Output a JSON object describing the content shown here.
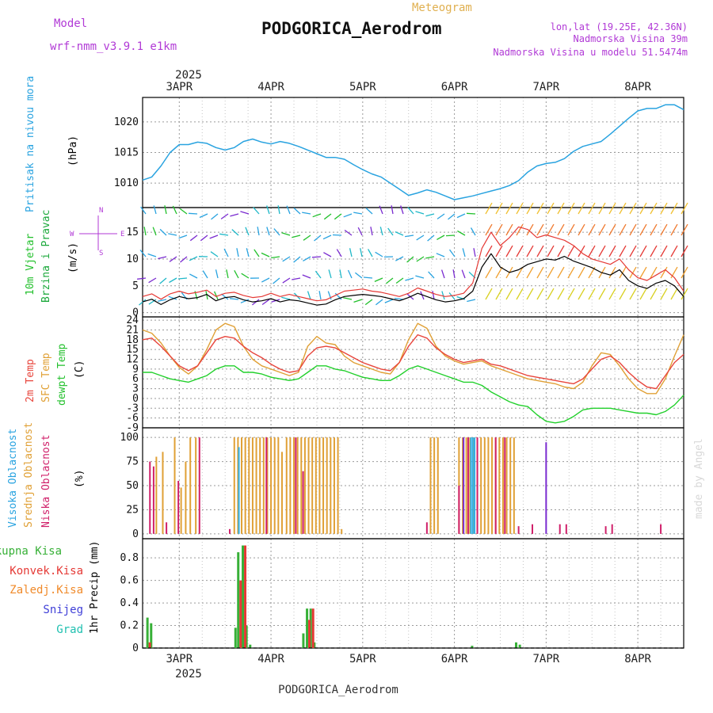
{
  "header": {
    "model_label": "Model",
    "model_name": "wrf-nmm_v3.9.1 e1km",
    "meteogram_label": "Meteogram",
    "station": "PODGORICA_Aerodrom",
    "lonlat": "lon,lat (19.25E, 42.36N)",
    "altitude": "Nadmorska Visina 39m",
    "model_altitude": "Nadmorska Visina u modelu 51.5474m",
    "watermark": "made by Angel",
    "footer_station": "PODGORICA_Aerodrom"
  },
  "colors": {
    "pressure": "#29a3e0",
    "wind_title1": "#22c02c",
    "wind_title2": "#1aa83a",
    "wind_legend": "#b13ad6",
    "temp2m": "#e8453c",
    "sfc": "#e0a035",
    "dewpt": "#22d02c",
    "cloud_high": "#2fb0e8",
    "cloud_mid": "#e0a035",
    "cloud_low": "#d0206a",
    "cloud_extra": "#7a2bd0",
    "rain_total": "#37b037",
    "rain_conv": "#e53935",
    "rain_frozen": "#f08a2a",
    "rain_snow": "#4040d8",
    "rain_graupel": "#20c0b0",
    "wind_speed_line": "#000000",
    "wind_gust_line": "#e53935"
  },
  "axes": {
    "top_year": "2025",
    "bottom_year": "2025",
    "day_labels": [
      "3APR",
      "4APR",
      "5APR",
      "6APR",
      "7APR",
      "8APR"
    ]
  },
  "chart_data": [
    {
      "type": "line",
      "id": "pressure",
      "ylabel_main": "Pritisak na nivou mora",
      "ylabel_unit": "(hPa)",
      "yticks": [
        1010,
        1015,
        1020
      ],
      "ylim": [
        1006,
        1024
      ],
      "grid": true,
      "x_range": [
        2.6,
        8.5
      ],
      "x": [
        2.6,
        2.7,
        2.8,
        2.9,
        3.0,
        3.1,
        3.2,
        3.3,
        3.4,
        3.5,
        3.6,
        3.7,
        3.8,
        3.9,
        4.0,
        4.1,
        4.2,
        4.3,
        4.4,
        4.5,
        4.6,
        4.7,
        4.8,
        4.9,
        5.0,
        5.1,
        5.2,
        5.3,
        5.4,
        5.5,
        5.6,
        5.7,
        5.8,
        5.9,
        6.0,
        6.1,
        6.2,
        6.3,
        6.4,
        6.5,
        6.6,
        6.7,
        6.8,
        6.9,
        7.0,
        7.1,
        7.2,
        7.3,
        7.4,
        7.5,
        7.6,
        7.7,
        7.8,
        7.9,
        8.0,
        8.1,
        8.2,
        8.3,
        8.4,
        8.5
      ],
      "series": [
        {
          "name": "",
          "values": [
            1010.5,
            1011.0,
            1012.8,
            1015.0,
            1016.3,
            1016.3,
            1016.7,
            1016.5,
            1015.8,
            1015.4,
            1015.8,
            1016.8,
            1017.2,
            1016.7,
            1016.4,
            1016.8,
            1016.5,
            1016.0,
            1015.4,
            1014.8,
            1014.2,
            1014.2,
            1013.9,
            1013.0,
            1012.2,
            1011.5,
            1011.0,
            1010.0,
            1009.0,
            1008.0,
            1008.4,
            1008.9,
            1008.5,
            1007.9,
            1007.3,
            1007.6,
            1007.9,
            1008.3,
            1008.7,
            1009.1,
            1009.6,
            1010.4,
            1011.8,
            1012.8,
            1013.2,
            1013.4,
            1014.0,
            1015.2,
            1016.0,
            1016.4,
            1016.8,
            1018.0,
            1019.3,
            1020.6,
            1021.8,
            1022.2,
            1022.2,
            1022.8,
            1022.8,
            1022.0
          ]
        }
      ]
    },
    {
      "type": "line",
      "id": "wind",
      "ylabel_main1": "10m Vjetar",
      "ylabel_main2": "Brzina i Pravac",
      "ylabel_unit": "(m/s)",
      "legend_n": "N",
      "legend_w": "W",
      "legend_e": "E",
      "legend_s": "S",
      "yticks": [
        0,
        5,
        10,
        15
      ],
      "ylim": [
        -0.8,
        19.6
      ],
      "grid": true,
      "x_range": [
        2.6,
        8.5
      ],
      "x": [
        2.6,
        2.7,
        2.8,
        2.9,
        3.0,
        3.1,
        3.2,
        3.3,
        3.4,
        3.5,
        3.6,
        3.7,
        3.8,
        3.9,
        4.0,
        4.1,
        4.2,
        4.3,
        4.4,
        4.5,
        4.6,
        4.7,
        4.8,
        4.9,
        5.0,
        5.1,
        5.2,
        5.3,
        5.4,
        5.5,
        5.6,
        5.7,
        5.8,
        5.9,
        6.0,
        6.1,
        6.2,
        6.3,
        6.4,
        6.5,
        6.6,
        6.7,
        6.8,
        6.9,
        7.0,
        7.1,
        7.2,
        7.3,
        7.4,
        7.5,
        7.6,
        7.7,
        7.8,
        7.9,
        8.0,
        8.1,
        8.2,
        8.3,
        8.4,
        8.5
      ],
      "series": [
        {
          "name": "",
          "values": [
            2.0,
            2.5,
            1.5,
            2.4,
            3.0,
            2.6,
            2.8,
            3.4,
            2.2,
            2.8,
            3.0,
            2.4,
            2.0,
            2.2,
            2.6,
            2.0,
            2.4,
            2.2,
            1.8,
            1.4,
            1.6,
            2.4,
            3.0,
            3.2,
            3.4,
            3.2,
            3.0,
            2.6,
            2.2,
            2.8,
            3.6,
            3.0,
            2.4,
            2.0,
            2.2,
            2.6,
            4.0,
            8.5,
            11.0,
            8.5,
            7.5,
            8.0,
            9.0,
            9.5,
            10.0,
            9.8,
            10.5,
            9.6,
            9.0,
            8.4,
            7.5,
            7.0,
            8.0,
            6.0,
            5.0,
            4.5,
            5.5,
            6.0,
            5.0,
            3.0
          ]
        },
        {
          "name": "",
          "values": [
            3.0,
            3.5,
            2.5,
            3.5,
            4.0,
            3.5,
            3.8,
            4.2,
            3.0,
            3.6,
            3.8,
            3.2,
            2.8,
            3.0,
            3.6,
            3.0,
            3.4,
            3.0,
            2.6,
            2.2,
            2.4,
            3.2,
            4.0,
            4.2,
            4.4,
            4.0,
            3.8,
            3.4,
            3.0,
            3.6,
            4.6,
            4.0,
            3.4,
            3.0,
            3.2,
            3.6,
            5.5,
            12.0,
            15.0,
            12.5,
            14.0,
            16.0,
            15.5,
            14.0,
            14.5,
            14.0,
            13.5,
            12.5,
            11.0,
            10.0,
            9.5,
            9.0,
            10.0,
            8.0,
            6.5,
            6.0,
            7.0,
            8.0,
            6.5,
            4.0
          ]
        }
      ]
    },
    {
      "type": "line",
      "id": "temperature",
      "ylabel_1": "2m Temp",
      "ylabel_2": "SFC Temp",
      "ylabel_3": "dewpt Temp",
      "ylabel_unit": "(C)",
      "yticks": [
        -9,
        -6,
        -3,
        0,
        3,
        6,
        9,
        12,
        15,
        18,
        21,
        24
      ],
      "ylim": [
        -9,
        25
      ],
      "grid": true,
      "x_range": [
        2.6,
        8.5
      ],
      "x": [
        2.6,
        2.7,
        2.8,
        2.9,
        3.0,
        3.1,
        3.2,
        3.3,
        3.4,
        3.5,
        3.6,
        3.7,
        3.8,
        3.9,
        4.0,
        4.1,
        4.2,
        4.3,
        4.4,
        4.5,
        4.6,
        4.7,
        4.8,
        4.9,
        5.0,
        5.1,
        5.2,
        5.3,
        5.4,
        5.5,
        5.6,
        5.7,
        5.8,
        5.9,
        6.0,
        6.1,
        6.2,
        6.3,
        6.4,
        6.5,
        6.6,
        6.7,
        6.8,
        6.9,
        7.0,
        7.1,
        7.2,
        7.3,
        7.4,
        7.5,
        7.6,
        7.7,
        7.8,
        7.9,
        8.0,
        8.1,
        8.2,
        8.3,
        8.4,
        8.5
      ],
      "series": [
        {
          "name": "2m Temp",
          "values": [
            18,
            18.5,
            16,
            13,
            10,
            8.5,
            10,
            14,
            18,
            19,
            18.5,
            16,
            14,
            12.5,
            10.5,
            9,
            8,
            8.5,
            13,
            15.5,
            16,
            15.5,
            14,
            12.5,
            11,
            10,
            9,
            8.5,
            11,
            16,
            19.5,
            18.5,
            15.5,
            13.5,
            12,
            11,
            11.5,
            12,
            10.5,
            10,
            9,
            8,
            7,
            6.5,
            6,
            5.5,
            5,
            4.5,
            6,
            9,
            12,
            13,
            11,
            8,
            5.5,
            3.5,
            3,
            7,
            11,
            13.5
          ]
        },
        {
          "name": "SFC Temp",
          "values": [
            21,
            20,
            17,
            13,
            9.5,
            7.5,
            10,
            15,
            21,
            23,
            22,
            16,
            12,
            10,
            9,
            8,
            7,
            8,
            16,
            19,
            17,
            16.5,
            13,
            11,
            10,
            9,
            8,
            7.5,
            11,
            18,
            23,
            21.5,
            16,
            13,
            11.5,
            10.5,
            11,
            11.5,
            10,
            9,
            8,
            7,
            6,
            5.5,
            5,
            4.5,
            3.5,
            3,
            5,
            10,
            14,
            13.5,
            10,
            6,
            3,
            1.5,
            1.5,
            6,
            13,
            19.5
          ]
        },
        {
          "name": "dewpt Temp",
          "values": [
            8,
            8,
            7,
            6,
            5.5,
            5,
            6,
            7,
            9,
            10,
            10,
            8,
            8,
            7.5,
            6.5,
            6,
            5.5,
            6,
            8,
            10,
            10,
            9,
            8.5,
            7.5,
            6.5,
            6,
            5.5,
            5.5,
            7,
            9,
            10,
            9,
            8,
            7,
            6,
            5,
            5,
            4,
            2,
            0.5,
            -1,
            -2,
            -2.5,
            -5,
            -7,
            -7.5,
            -7,
            -5.5,
            -3.5,
            -3,
            -3,
            -3,
            -3.5,
            -4,
            -4.5,
            -4.5,
            -5,
            -4,
            -2,
            1
          ]
        }
      ]
    },
    {
      "type": "bar",
      "id": "clouds",
      "ylabel_1": "Visoka Oblacnost",
      "ylabel_2": "Srednja Oblacnost",
      "ylabel_3": "Niska Oblacnost",
      "ylabel_unit": "(%)",
      "yticks": [
        0,
        25,
        50,
        75,
        100
      ],
      "ylim": [
        -5,
        110
      ],
      "grid": true,
      "x_range": [
        2.6,
        8.5
      ],
      "series": [
        {
          "name": "Srednja Oblacnost",
          "x": [
            2.75,
            2.82,
            2.95,
            3.02,
            3.07,
            3.12,
            3.18,
            3.6,
            3.64,
            3.68,
            3.72,
            3.76,
            3.8,
            3.84,
            3.88,
            3.92,
            3.96,
            4.0,
            4.04,
            4.08,
            4.12,
            4.17,
            4.21,
            4.25,
            4.29,
            4.33,
            4.37,
            4.41,
            4.45,
            4.49,
            4.53,
            4.57,
            4.61,
            4.65,
            4.69,
            4.73,
            4.77,
            5.74,
            5.78,
            5.82,
            6.05,
            6.09,
            6.13,
            6.17,
            6.21,
            6.25,
            6.29,
            6.33,
            6.37,
            6.41,
            6.45,
            6.49,
            6.53,
            6.57,
            6.61,
            6.65
          ],
          "values": [
            80,
            85,
            100,
            48,
            75,
            100,
            100,
            100,
            100,
            100,
            100,
            100,
            100,
            100,
            100,
            100,
            100,
            100,
            100,
            100,
            85,
            100,
            100,
            100,
            100,
            100,
            100,
            100,
            100,
            100,
            100,
            100,
            100,
            100,
            100,
            100,
            5,
            100,
            100,
            100,
            100,
            100,
            100,
            100,
            100,
            100,
            100,
            100,
            100,
            100,
            100,
            100,
            100,
            100,
            100,
            100
          ]
        },
        {
          "name": "Niska Oblacnost",
          "x": [
            2.68,
            2.72,
            2.86,
            2.99,
            3.22,
            3.55,
            3.95,
            4.27,
            4.35,
            5.7,
            6.05,
            6.15,
            6.25,
            6.45,
            6.55,
            6.7,
            6.85,
            7.15,
            7.22,
            7.65,
            7.72,
            8.25
          ],
          "values": [
            75,
            70,
            12,
            55,
            100,
            5,
            100,
            100,
            65,
            12,
            50,
            100,
            100,
            100,
            100,
            8,
            10,
            10,
            10,
            8,
            10,
            10
          ]
        },
        {
          "name": "Visoka Oblacnost",
          "x": [
            3.65,
            6.18,
            6.2,
            6.22
          ],
          "values": [
            90,
            100,
            100,
            100
          ]
        },
        {
          "name": "",
          "x": [
            6.1,
            7.0
          ],
          "values": [
            100,
            95
          ]
        }
      ]
    },
    {
      "type": "bar",
      "id": "precip",
      "ylabel": "1hr Precip (mm)",
      "yticks": [
        0,
        0.2,
        0.4,
        0.6,
        0.8
      ],
      "ylim": [
        0,
        0.97
      ],
      "grid": true,
      "x_range": [
        2.6,
        8.5
      ],
      "legend": [
        "Ukupna Kisa",
        "Konvek.Kisa",
        "Zaledj.Kisa",
        "Snijeg",
        "Grad"
      ],
      "series": [
        {
          "name": "Ukupna Kisa",
          "x": [
            2.64,
            2.68,
            3.6,
            3.63,
            3.68,
            3.72,
            3.76,
            4.34,
            4.38,
            4.42,
            4.46,
            6.18,
            6.66,
            6.7
          ],
          "values": [
            0.27,
            0.22,
            0.18,
            0.85,
            0.91,
            0.2,
            0.03,
            0.13,
            0.35,
            0.35,
            0.05,
            0.02,
            0.05,
            0.03
          ]
        },
        {
          "name": "Konvek.Kisa",
          "x": [
            2.64,
            3.63,
            3.68,
            4.38,
            4.42
          ],
          "values": [
            0.05,
            0.6,
            0.91,
            0.25,
            0.35
          ]
        }
      ]
    }
  ]
}
